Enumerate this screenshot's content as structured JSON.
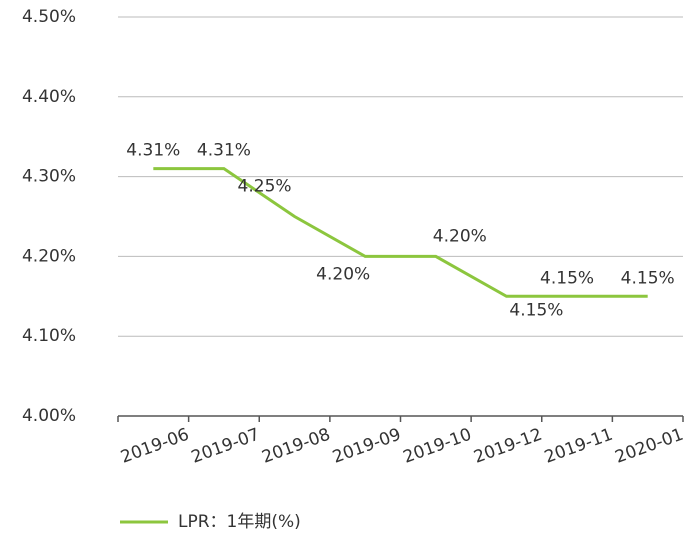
{
  "chart_data": {
    "type": "line",
    "categories": [
      "2019-06",
      "2019-07",
      "2019-08",
      "2019-09",
      "2019-10",
      "2019-12",
      "2019-11",
      "2020-01"
    ],
    "series": [
      {
        "name": "LPR：1年期(%)",
        "color": "#8cc63e",
        "values": [
          4.31,
          4.31,
          4.25,
          4.2,
          4.2,
          4.15,
          4.15,
          4.15
        ],
        "value_labels": [
          "4.31%",
          "4.31%",
          "4.25%",
          "4.20%",
          "4.20%",
          "4.15%",
          "4.15%",
          "4.15%"
        ]
      }
    ],
    "ylim": [
      4.0,
      4.5
    ],
    "yticks": [
      {
        "value": 4.0,
        "label": "4.00%"
      },
      {
        "value": 4.1,
        "label": "4.10%"
      },
      {
        "value": 4.2,
        "label": "4.20%"
      },
      {
        "value": 4.3,
        "label": "4.30%"
      },
      {
        "value": 4.4,
        "label": "4.40%"
      },
      {
        "value": 4.5,
        "label": "4.50%"
      }
    ],
    "grid": true,
    "legend": "bottom-left"
  }
}
